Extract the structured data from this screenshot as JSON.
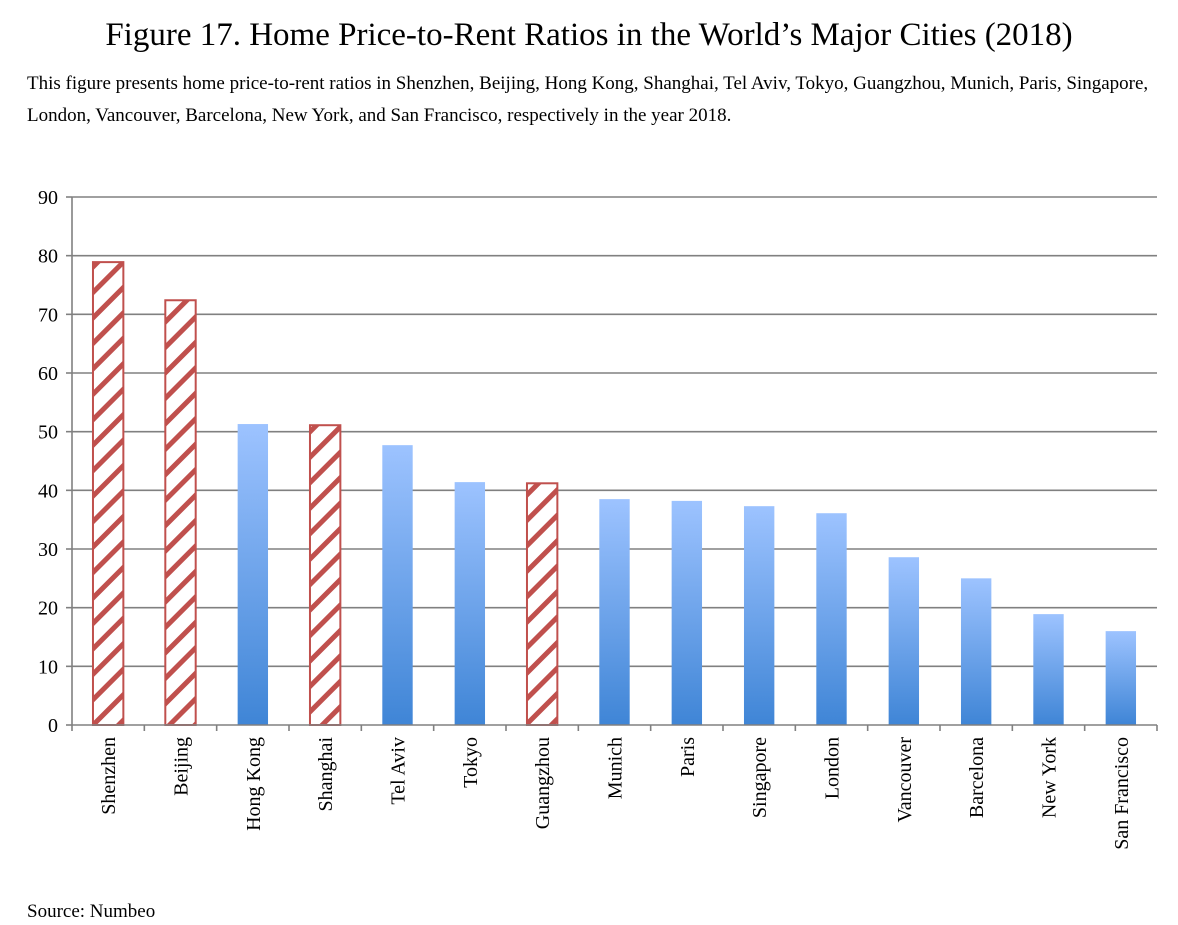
{
  "figure": {
    "title": "Figure 17. Home Price-to-Rent Ratios in the World’s Major Cities (2018)",
    "description": "This figure presents home price-to-rent ratios in Shenzhen, Beijing, Hong Kong, Shanghai, Tel Aviv, Tokyo, Guangzhou, Munich, Paris, Singapore, London, Vancouver, Barcelona, New York, and San Francisco, respectively in the year 2018.",
    "source": "Source: Numbeo"
  },
  "colors": {
    "highlight_stroke": "#c0504d",
    "bar_top": "#9dc3ff",
    "bar_bottom": "#3f85d6",
    "grid": "#808080"
  },
  "chart_data": {
    "type": "bar",
    "title": "Home Price-to-Rent Ratios in the World’s Major Cities (2018)",
    "xlabel": "",
    "ylabel": "",
    "ylim": [
      0,
      90
    ],
    "yticks": [
      0,
      10,
      20,
      30,
      40,
      50,
      60,
      70,
      80,
      90
    ],
    "grid": true,
    "legend": "none",
    "categories": [
      "Shenzhen",
      "Beijing",
      "Hong Kong",
      "Shanghai",
      "Tel Aviv",
      "Tokyo",
      "Guangzhou",
      "Munich",
      "Paris",
      "Singapore",
      "London",
      "Vancouver",
      "Barcelona",
      "New York",
      "San Francisco"
    ],
    "values": [
      78.9,
      72.4,
      51.3,
      51.1,
      47.7,
      41.4,
      41.2,
      38.5,
      38.2,
      37.3,
      36.1,
      28.6,
      25.0,
      18.9,
      16.0
    ],
    "highlighted_mainland_china": [
      true,
      true,
      false,
      true,
      false,
      false,
      true,
      false,
      false,
      false,
      false,
      false,
      false,
      false,
      false
    ]
  }
}
